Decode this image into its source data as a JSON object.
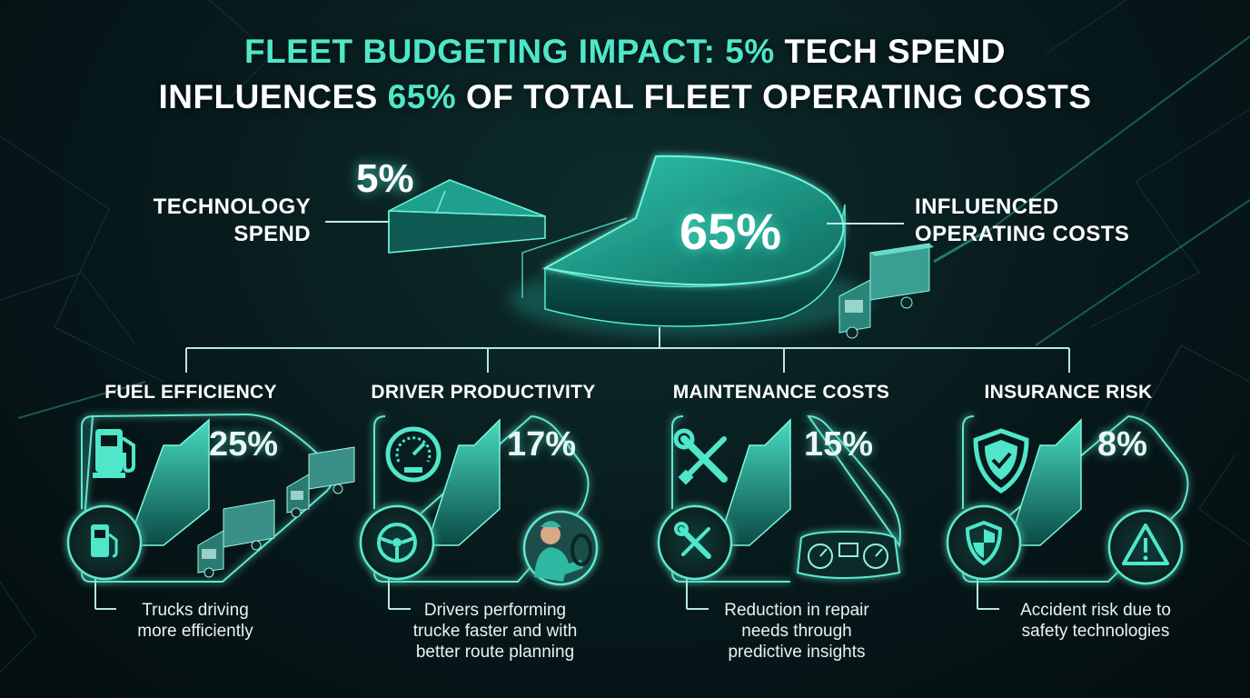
{
  "title": {
    "line1_accent": "FLEET BUDGETING IMPACT: 5%",
    "line1_rest": " TECH SPEND",
    "line2_start": "INFLUENCES ",
    "line2_accent": "65%",
    "line2_end": " OF TOTAL FLEET OPERATING COSTS"
  },
  "colors": {
    "accent": "#4fe6c9",
    "background": "#07191b",
    "text": "#ffffff"
  },
  "pie": {
    "tech_label_line1": "TECHNOLOGY",
    "tech_label_line2": "SPEND",
    "tech_value": "5%",
    "influenced_value": "65%",
    "influenced_label_line1": "INFLUENCED",
    "influenced_label_line2": "OPERATING COSTS"
  },
  "categories": [
    {
      "title": "FUEL EFFICIENCY",
      "value": "25%",
      "description": [
        "Trucks driving",
        "more efficiently"
      ],
      "icons": [
        "fuel-pump-icon",
        "fuel-pump-icon",
        "trucks-icon"
      ]
    },
    {
      "title": "DRIVER PRODUCTIVITY",
      "value": "17%",
      "description": [
        "Drivers performing",
        "trucke faster and with",
        "better route planning"
      ],
      "icons": [
        "speedometer-icon",
        "steering-wheel-icon",
        "driver-icon"
      ]
    },
    {
      "title": "MAINTENANCE COSTS",
      "value": "15%",
      "description": [
        "Reduction in repair",
        "needs through",
        "predictive insights"
      ],
      "icons": [
        "wrench-screwdriver-icon",
        "wrench-screwdriver-icon",
        "dashboard-gauges-icon"
      ]
    },
    {
      "title": "INSURANCE RISK",
      "value": "8%",
      "description": [
        "Accident risk due to",
        "safety technologies"
      ],
      "icons": [
        "shield-check-icon",
        "shield-icon",
        "warning-icon"
      ]
    }
  ]
}
